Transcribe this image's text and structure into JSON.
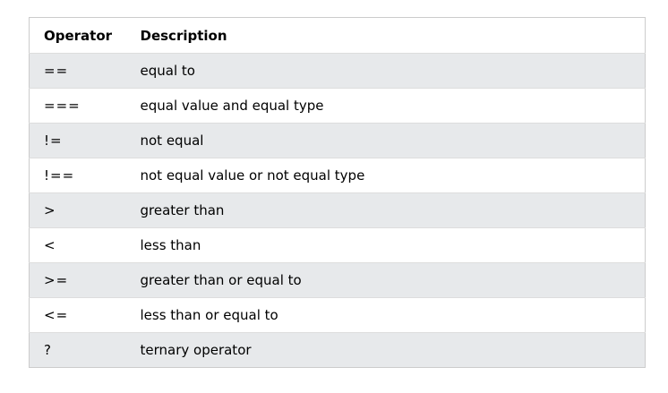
{
  "table": {
    "headers": [
      "Operator",
      "Description"
    ],
    "rows": [
      {
        "operator": "==",
        "description": "equal to"
      },
      {
        "operator": "===",
        "description": "equal value and equal type"
      },
      {
        "operator": "!=",
        "description": "not equal"
      },
      {
        "operator": "!==",
        "description": "not equal value or not equal type"
      },
      {
        "operator": ">",
        "description": "greater than"
      },
      {
        "operator": "<",
        "description": "less than"
      },
      {
        "operator": ">=",
        "description": "greater than or equal to"
      },
      {
        "operator": "<=",
        "description": "less than or equal to"
      },
      {
        "operator": "?",
        "description": "ternary operator"
      }
    ]
  },
  "colors": {
    "stripe": "#e7e9eb",
    "border": "#cccccc"
  }
}
